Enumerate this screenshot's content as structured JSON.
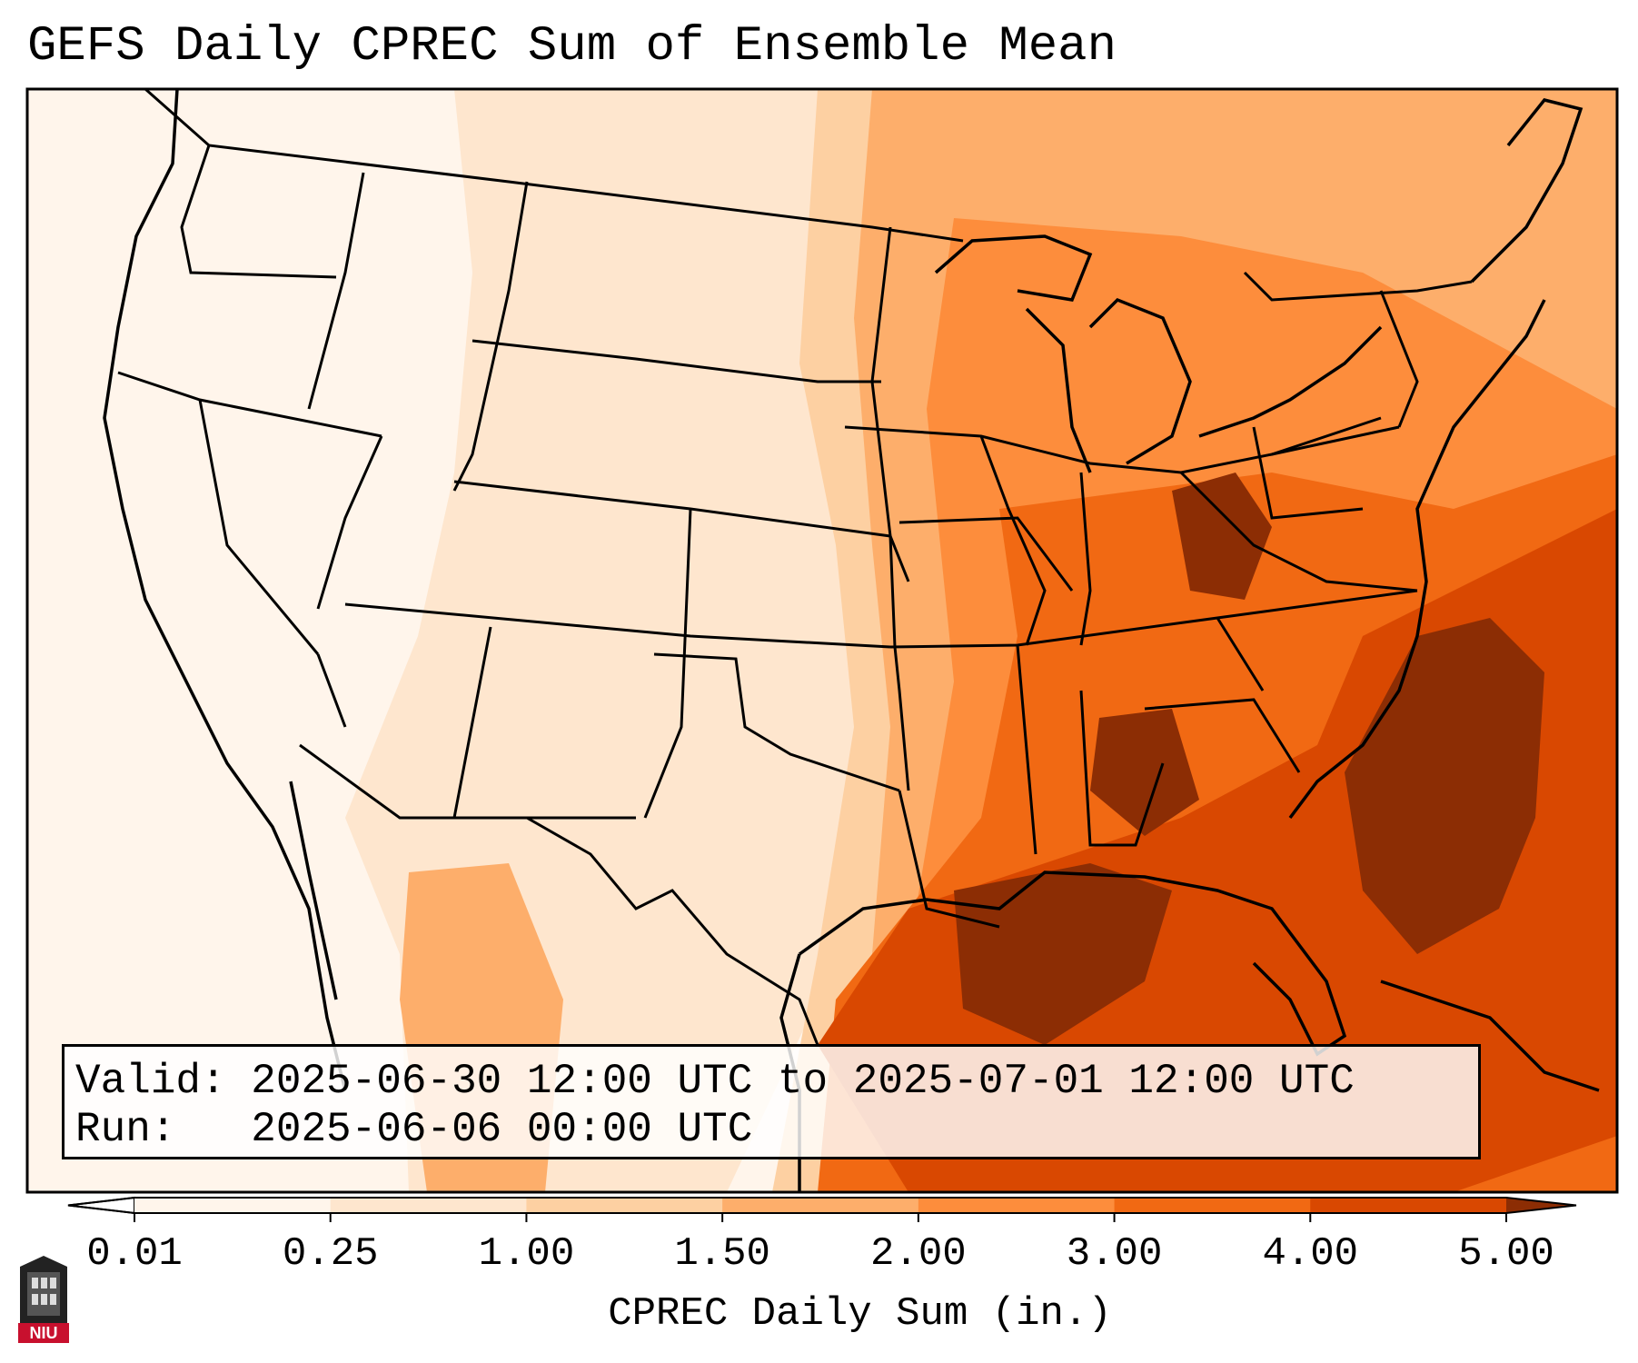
{
  "title": "GEFS Daily CPREC Sum of Ensemble Mean",
  "info": {
    "valid_line": "Valid: 2025-06-30 12:00 UTC to 2025-07-01 12:00 UTC",
    "run_line": "Run:   2025-06-06 00:00 UTC"
  },
  "colorbar": {
    "label": "CPREC Daily Sum (in.)",
    "ticks": [
      "0.01",
      "0.25",
      "1.00",
      "1.50",
      "2.00",
      "3.00",
      "4.00",
      "5.00"
    ],
    "colors": [
      "#fff5eb",
      "#fee6ce",
      "#fdd0a2",
      "#fdae6b",
      "#fd8d3c",
      "#f16913",
      "#d94801",
      "#8c2d04"
    ],
    "extend": "both"
  },
  "logo": {
    "text": "NIU"
  }
}
